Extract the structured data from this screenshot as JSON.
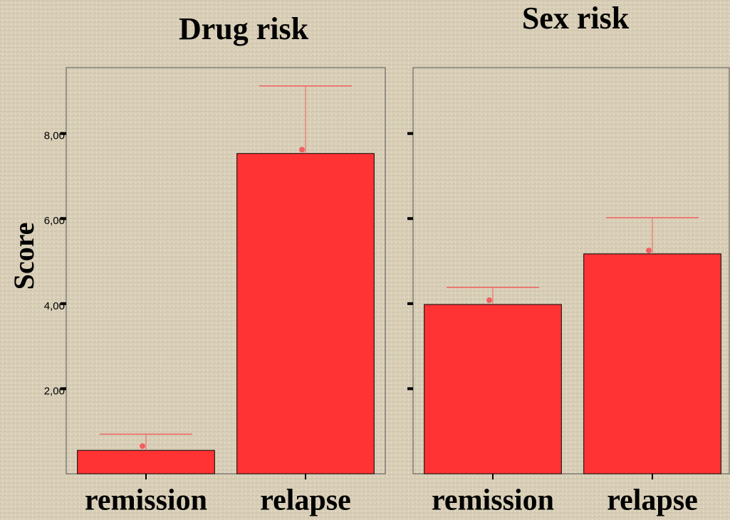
{
  "chart_data": [
    {
      "type": "bar",
      "title": "Drug risk",
      "y_label": "Score",
      "categories": [
        "remission",
        "relapse"
      ],
      "values": [
        0.55,
        7.53
      ],
      "markers": [
        0.65,
        7.62
      ],
      "error_upper": [
        0.93,
        9.12
      ],
      "color": "#ff3333",
      "error_color": "#f06060",
      "ylim": [
        0,
        9.55
      ],
      "yticks": [
        {
          "value": 2,
          "label": "2,00"
        },
        {
          "value": 4,
          "label": "4,00"
        },
        {
          "value": 6,
          "label": "6,00"
        },
        {
          "value": 8,
          "label": "8,00"
        }
      ],
      "ytick_labels": true
    },
    {
      "type": "bar",
      "title": "Sex risk",
      "categories": [
        "remission",
        "relapse"
      ],
      "values": [
        3.98,
        5.17
      ],
      "markers": [
        4.08,
        5.25
      ],
      "error_upper": [
        4.38,
        6.02
      ],
      "color": "#ff3333",
      "error_color": "#f06060",
      "ylim": [
        0,
        9.55
      ],
      "yticks": [
        2,
        4,
        6,
        8
      ],
      "ytick_labels": false
    }
  ]
}
